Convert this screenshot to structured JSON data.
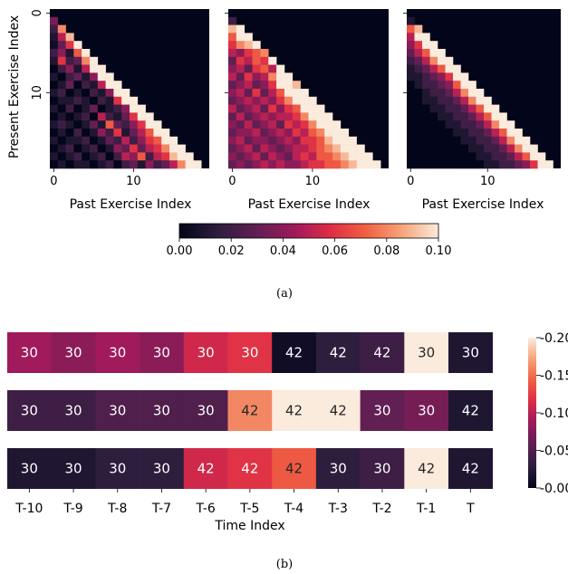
{
  "chart_data": [
    {
      "type": "heatmap",
      "panel": "a-1",
      "xlabel": "Past Exercise Index",
      "ylabel": "Present Exercise Index",
      "x_ticks": [
        "0",
        "10"
      ],
      "y_ticks": [
        "0",
        "10"
      ],
      "size": 20,
      "matrix": [
        [
          0.035
        ],
        [
          0.02,
          0.08
        ],
        [
          0.01,
          0.05,
          0.09
        ],
        [
          0.005,
          0.03,
          0.06,
          0.1
        ],
        [
          0.02,
          0.04,
          0.01,
          0.07,
          0.1
        ],
        [
          0.01,
          0.06,
          0.02,
          0.03,
          0.08,
          0.1
        ],
        [
          0.0,
          0.02,
          0.04,
          0.01,
          0.05,
          0.1,
          0.1
        ],
        [
          0.01,
          0.0,
          0.02,
          0.03,
          0.01,
          0.04,
          0.1,
          0.1
        ],
        [
          0.0,
          0.01,
          0.03,
          0.0,
          0.02,
          0.01,
          0.05,
          0.1,
          0.1
        ],
        [
          0.01,
          0.02,
          0.0,
          0.01,
          0.0,
          0.02,
          0.01,
          0.04,
          0.1,
          0.1
        ],
        [
          0.0,
          0.01,
          0.01,
          0.02,
          0.01,
          0.0,
          0.02,
          0.01,
          0.06,
          0.1,
          0.1
        ],
        [
          0.01,
          0.0,
          0.02,
          0.0,
          0.01,
          0.03,
          0.0,
          0.01,
          0.02,
          0.04,
          0.1,
          0.1
        ],
        [
          0.0,
          0.01,
          0.0,
          0.01,
          0.02,
          0.0,
          0.05,
          0.02,
          0.01,
          0.03,
          0.06,
          0.1,
          0.1
        ],
        [
          0.01,
          0.02,
          0.01,
          0.0,
          0.01,
          0.03,
          0.01,
          0.07,
          0.03,
          0.02,
          0.04,
          0.06,
          0.1,
          0.1
        ],
        [
          0.0,
          0.01,
          0.0,
          0.02,
          0.0,
          0.01,
          0.04,
          0.02,
          0.06,
          0.01,
          0.03,
          0.05,
          0.07,
          0.1,
          0.1
        ],
        [
          0.01,
          0.0,
          0.01,
          0.01,
          0.02,
          0.0,
          0.01,
          0.03,
          0.02,
          0.05,
          0.02,
          0.04,
          0.06,
          0.07,
          0.1,
          0.1
        ],
        [
          0.0,
          0.01,
          0.02,
          0.0,
          0.01,
          0.02,
          0.0,
          0.01,
          0.04,
          0.03,
          0.06,
          0.03,
          0.05,
          0.06,
          0.08,
          0.1,
          0.1
        ],
        [
          0.01,
          0.0,
          0.01,
          0.02,
          0.0,
          0.01,
          0.02,
          0.0,
          0.02,
          0.05,
          0.04,
          0.07,
          0.02,
          0.05,
          0.06,
          0.09,
          0.1,
          0.1
        ],
        [
          0.0,
          0.01,
          0.0,
          0.01,
          0.01,
          0.0,
          0.01,
          0.02,
          0.0,
          0.02,
          0.03,
          0.01,
          0.04,
          0.02,
          0.03,
          0.05,
          0.08,
          0.1,
          0.1
        ]
      ]
    },
    {
      "type": "heatmap",
      "panel": "a-2",
      "xlabel": "Past Exercise Index",
      "x_ticks": [
        "0",
        "10"
      ],
      "size": 20,
      "matrix": [
        [
          0.02
        ],
        [
          0.09,
          0.1
        ],
        [
          0.07,
          0.1,
          0.1
        ],
        [
          0.06,
          0.08,
          0.09,
          0.1
        ],
        [
          0.05,
          0.04,
          0.06,
          0.07,
          0.08
        ],
        [
          0.03,
          0.06,
          0.05,
          0.07,
          0.06,
          0.1
        ],
        [
          0.04,
          0.05,
          0.03,
          0.06,
          0.07,
          0.05,
          0.1
        ],
        [
          0.05,
          0.03,
          0.06,
          0.04,
          0.05,
          0.08,
          0.1,
          0.1
        ],
        [
          0.03,
          0.04,
          0.05,
          0.03,
          0.04,
          0.06,
          0.1,
          0.1,
          0.09
        ],
        [
          0.04,
          0.05,
          0.03,
          0.06,
          0.03,
          0.05,
          0.07,
          0.1,
          0.1,
          0.1
        ],
        [
          0.03,
          0.04,
          0.05,
          0.04,
          0.05,
          0.04,
          0.06,
          0.08,
          0.1,
          0.1,
          0.1
        ],
        [
          0.05,
          0.03,
          0.04,
          0.05,
          0.03,
          0.06,
          0.04,
          0.06,
          0.07,
          0.1,
          0.1,
          0.1
        ],
        [
          0.03,
          0.05,
          0.03,
          0.04,
          0.05,
          0.04,
          0.05,
          0.05,
          0.06,
          0.08,
          0.1,
          0.1,
          0.1
        ],
        [
          0.04,
          0.03,
          0.05,
          0.03,
          0.04,
          0.05,
          0.03,
          0.06,
          0.05,
          0.06,
          0.08,
          0.1,
          0.1,
          0.1
        ],
        [
          0.03,
          0.04,
          0.04,
          0.05,
          0.03,
          0.04,
          0.05,
          0.04,
          0.06,
          0.05,
          0.07,
          0.08,
          0.1,
          0.1,
          0.1
        ],
        [
          0.04,
          0.05,
          0.03,
          0.04,
          0.04,
          0.03,
          0.04,
          0.05,
          0.04,
          0.06,
          0.06,
          0.07,
          0.09,
          0.1,
          0.1,
          0.1
        ],
        [
          0.03,
          0.04,
          0.05,
          0.03,
          0.05,
          0.04,
          0.03,
          0.04,
          0.05,
          0.05,
          0.06,
          0.07,
          0.08,
          0.09,
          0.1,
          0.1,
          0.1
        ],
        [
          0.04,
          0.03,
          0.04,
          0.05,
          0.03,
          0.05,
          0.04,
          0.03,
          0.05,
          0.06,
          0.05,
          0.07,
          0.07,
          0.08,
          0.09,
          0.1,
          0.1,
          0.1
        ],
        [
          0.03,
          0.04,
          0.03,
          0.04,
          0.05,
          0.04,
          0.05,
          0.04,
          0.04,
          0.05,
          0.06,
          0.06,
          0.07,
          0.07,
          0.08,
          0.09,
          0.1,
          0.1,
          0.1
        ]
      ]
    },
    {
      "type": "heatmap",
      "panel": "a-3",
      "xlabel": "Past Exercise Index",
      "x_ticks": [
        "0",
        "10"
      ],
      "size": 20,
      "matrix": [
        [
          0.01
        ],
        [
          0.07,
          0.09
        ],
        [
          0.05,
          0.1,
          0.1
        ],
        [
          0.04,
          0.06,
          0.1,
          0.1
        ],
        [
          0.03,
          0.05,
          0.07,
          0.1,
          0.1
        ],
        [
          0.02,
          0.03,
          0.05,
          0.08,
          0.1,
          0.1
        ],
        [
          0.01,
          0.02,
          0.03,
          0.05,
          0.07,
          0.1,
          0.1
        ],
        [
          0.01,
          0.01,
          0.02,
          0.03,
          0.04,
          0.06,
          0.1,
          0.1
        ],
        [
          0.0,
          0.01,
          0.02,
          0.02,
          0.03,
          0.04,
          0.07,
          0.1,
          0.1
        ],
        [
          0.0,
          0.0,
          0.01,
          0.02,
          0.02,
          0.03,
          0.05,
          0.08,
          0.1,
          0.1
        ],
        [
          0.0,
          0.0,
          0.01,
          0.01,
          0.02,
          0.02,
          0.03,
          0.05,
          0.08,
          0.1,
          0.1
        ],
        [
          0.0,
          0.0,
          0.0,
          0.01,
          0.01,
          0.02,
          0.02,
          0.03,
          0.05,
          0.07,
          0.1,
          0.1
        ],
        [
          0.0,
          0.0,
          0.0,
          0.0,
          0.01,
          0.01,
          0.02,
          0.02,
          0.03,
          0.05,
          0.07,
          0.1,
          0.1
        ],
        [
          0.0,
          0.0,
          0.0,
          0.0,
          0.0,
          0.01,
          0.01,
          0.02,
          0.02,
          0.03,
          0.05,
          0.08,
          0.1,
          0.1
        ],
        [
          0.0,
          0.0,
          0.0,
          0.0,
          0.0,
          0.0,
          0.01,
          0.01,
          0.02,
          0.02,
          0.03,
          0.05,
          0.07,
          0.1,
          0.1
        ],
        [
          0.0,
          0.0,
          0.0,
          0.0,
          0.0,
          0.0,
          0.0,
          0.01,
          0.01,
          0.02,
          0.02,
          0.03,
          0.05,
          0.08,
          0.1,
          0.1
        ],
        [
          0.0,
          0.0,
          0.0,
          0.0,
          0.0,
          0.0,
          0.0,
          0.0,
          0.01,
          0.01,
          0.02,
          0.02,
          0.03,
          0.05,
          0.08,
          0.1,
          0.1
        ],
        [
          0.0,
          0.0,
          0.0,
          0.0,
          0.0,
          0.0,
          0.0,
          0.0,
          0.0,
          0.01,
          0.01,
          0.02,
          0.02,
          0.03,
          0.05,
          0.07,
          0.1,
          0.1
        ],
        [
          0.0,
          0.0,
          0.0,
          0.0,
          0.0,
          0.0,
          0.0,
          0.0,
          0.0,
          0.0,
          0.01,
          0.01,
          0.02,
          0.02,
          0.03,
          0.04,
          0.06,
          0.1,
          0.1
        ]
      ]
    },
    {
      "type": "heatmap",
      "panel": "b",
      "xlabel": "Time Index",
      "x_ticks": [
        "T-10",
        "T-9",
        "T-8",
        "T-7",
        "T-6",
        "T-5",
        "T-4",
        "T-3",
        "T-2",
        "T-1",
        "T"
      ],
      "colorbar_ticks": [
        "0.00",
        "0.05",
        "0.10",
        "0.15",
        "0.20"
      ],
      "rows": [
        {
          "values": [
            0.09,
            0.08,
            0.09,
            0.08,
            0.11,
            0.12,
            0.01,
            0.03,
            0.04,
            0.2,
            0.02
          ],
          "labels": [
            "30",
            "30",
            "30",
            "30",
            "30",
            "30",
            "42",
            "42",
            "42",
            "30",
            "30"
          ]
        },
        {
          "values": [
            0.04,
            0.04,
            0.05,
            0.05,
            0.05,
            0.16,
            0.21,
            0.21,
            0.06,
            0.07,
            0.02
          ],
          "labels": [
            "30",
            "30",
            "30",
            "30",
            "30",
            "42",
            "42",
            "42",
            "30",
            "30",
            "42"
          ]
        },
        {
          "values": [
            0.02,
            0.02,
            0.03,
            0.03,
            0.11,
            0.12,
            0.14,
            0.03,
            0.04,
            0.21,
            0.02
          ],
          "labels": [
            "30",
            "30",
            "30",
            "30",
            "42",
            "42",
            "42",
            "30",
            "30",
            "42",
            "42"
          ]
        }
      ]
    }
  ],
  "colorbar_a": {
    "ticks": [
      "0.00",
      "0.02",
      "0.04",
      "0.06",
      "0.08",
      "0.10"
    ]
  },
  "captions": {
    "a": "(a)",
    "b": "(b)"
  },
  "labels": {
    "ylabel_a": "Present Exercise Index",
    "xlabel_a": "Past Exercise Index",
    "xlabel_b": "Time Index"
  }
}
